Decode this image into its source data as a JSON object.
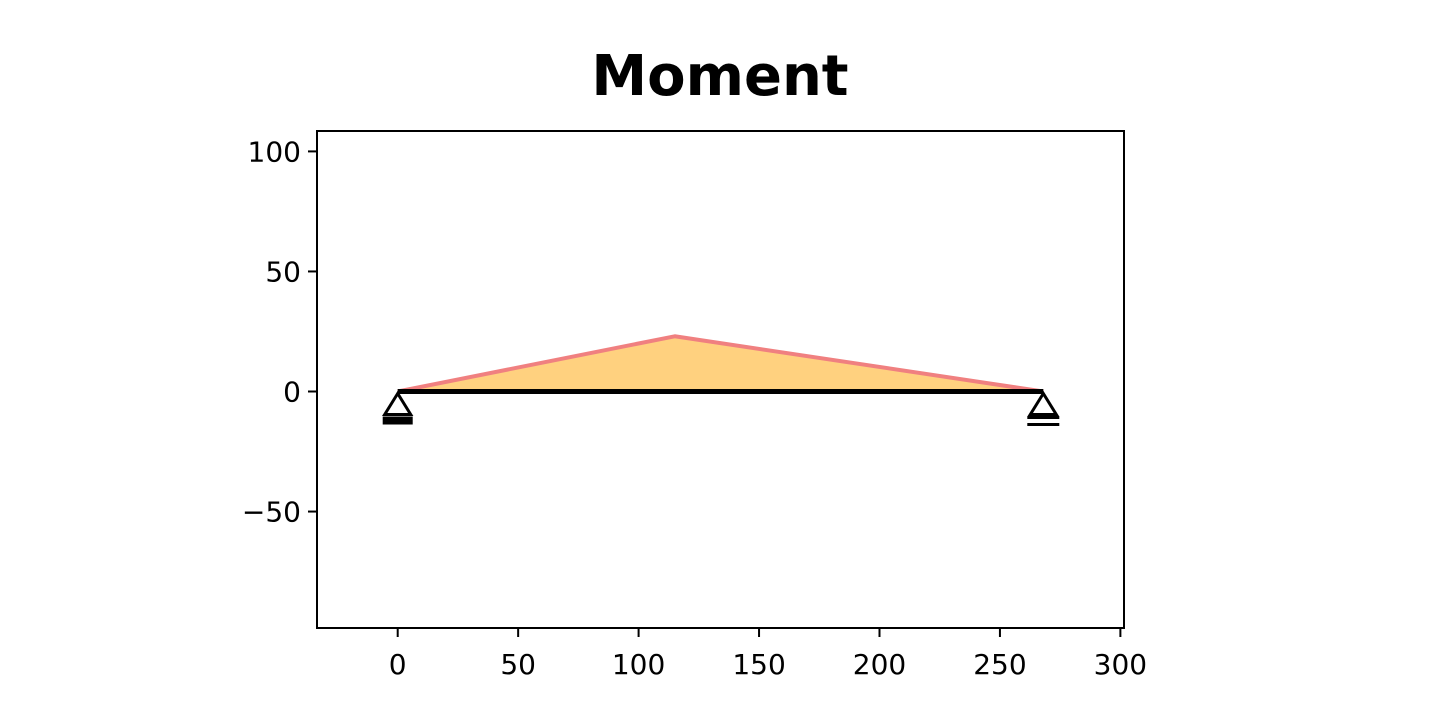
{
  "chart_data": {
    "type": "area",
    "title": "Moment",
    "xlabel": "",
    "ylabel": "",
    "xlim": [
      -33.5,
      301.5
    ],
    "ylim": [
      -98.5,
      108.5
    ],
    "x_ticks": [
      0,
      50,
      100,
      150,
      200,
      250,
      300
    ],
    "x_tick_labels": [
      "0",
      "50",
      "100",
      "150",
      "200",
      "250",
      "300"
    ],
    "y_ticks": [
      -50,
      0,
      50,
      100
    ],
    "y_tick_labels": [
      "−50",
      "0",
      "50",
      "100"
    ],
    "grid": false,
    "legend": "none",
    "series": [
      {
        "x": [
          0,
          115,
          268
        ],
        "y": [
          0,
          23,
          0
        ],
        "fill_color": "#ffd17f",
        "line_color": "#f08080"
      }
    ],
    "beam": {
      "x_start": 0,
      "x_end": 268,
      "color": "#000000"
    },
    "supports": [
      {
        "x": 0,
        "kind": "pin"
      },
      {
        "x": 268,
        "kind": "roller"
      }
    ]
  }
}
